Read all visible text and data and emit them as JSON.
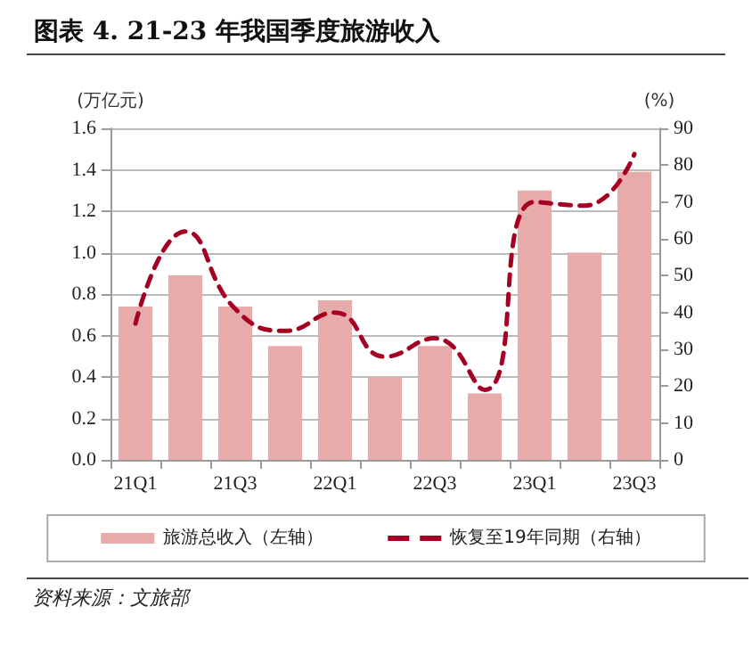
{
  "chart_data": {
    "type": "bar",
    "title": "图表 4. 21-23 年我国季度旅游收入",
    "ylabel": "(万亿元)",
    "y2label": "(%)",
    "categories": [
      "21Q1",
      null,
      "21Q3",
      null,
      "22Q1",
      null,
      "22Q3",
      null,
      "23Q1",
      null,
      "23Q3"
    ],
    "series": [
      {
        "name": "旅游总收入（左轴）",
        "color": "#e8abab",
        "values": [
          0.74,
          0.89,
          0.74,
          0.55,
          0.77,
          0.4,
          0.55,
          0.32,
          1.3,
          1.0,
          1.39
        ]
      },
      {
        "name": "恢复至19年同期（右轴）",
        "type": "line",
        "axis": "y2",
        "color": "#a50021",
        "line_style": "dashed",
        "values": [
          37,
          62,
          41,
          35,
          40,
          28,
          33,
          19,
          70,
          69,
          83
        ]
      }
    ],
    "ylim": [
      0,
      1.6
    ],
    "yticks": [
      {
        "value": 0,
        "label": "0.0"
      },
      0.2,
      0.4,
      0.6,
      0.8,
      {
        "value": 1,
        "label": "1.0"
      },
      1.2,
      1.4,
      1.6
    ],
    "y2lim": [
      0,
      90
    ],
    "y2ticks": [
      0,
      10,
      20,
      30,
      40,
      50,
      60,
      70,
      80,
      90
    ],
    "grid": "y",
    "legend": "bottom",
    "marker": "none",
    "annotations": [
      "资料来源：文旅部"
    ]
  }
}
